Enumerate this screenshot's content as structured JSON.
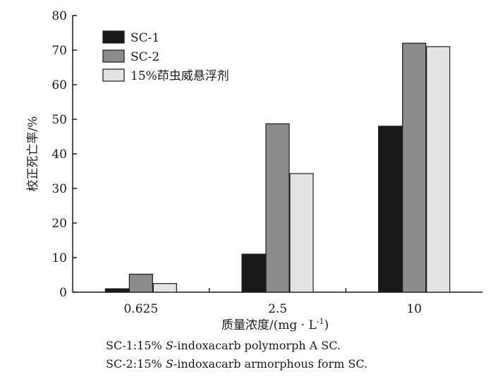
{
  "chart_data": {
    "type": "bar",
    "categories": [
      "0.625",
      "2.5",
      "10"
    ],
    "series": [
      {
        "name": "SC-1",
        "color": "#1a1a1a",
        "values": [
          1,
          11,
          48
        ]
      },
      {
        "name": "SC-2",
        "color": "#8c8c8c",
        "values": [
          5.2,
          48.7,
          72
        ]
      },
      {
        "name": "15%茚虫威悬浮剂",
        "color": "#e3e3e3",
        "values": [
          2.5,
          34.3,
          71
        ]
      }
    ],
    "ylim": [
      0,
      80
    ],
    "yticks": [
      0,
      10,
      20,
      30,
      40,
      50,
      60,
      70,
      80
    ],
    "ylabel": "校正死亡率/%",
    "xlabel_main": "质量浓度/(mg · L",
    "xlabel_sup": "-1",
    "xlabel_close": ")",
    "legend_position": "top-left",
    "grid": false
  },
  "notes": {
    "line1_prefix": "SC-1:15% ",
    "line1_italic": "S",
    "line1_suffix": "-indoxacarb polymorph A SC.",
    "line2_prefix": "SC-2:15% ",
    "line2_italic": "S",
    "line2_suffix": "-indoxacarb armorphous form SC."
  }
}
